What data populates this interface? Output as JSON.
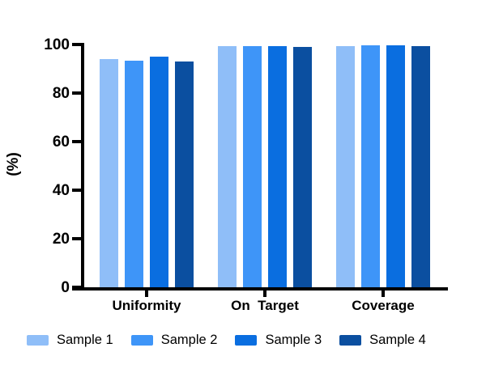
{
  "chart_data": {
    "type": "bar",
    "title": "",
    "xlabel": "",
    "ylabel": "(%)",
    "ylim": [
      0,
      100
    ],
    "yticks": [
      0,
      20,
      40,
      60,
      80,
      100
    ],
    "grid": false,
    "legend_position": "bottom",
    "categories": [
      "Uniformity",
      "On  Target",
      "Coverage"
    ],
    "series": [
      {
        "name": "Sample 1",
        "color": "#8FBEF8",
        "values": [
          94.0,
          99.3,
          99.5
        ]
      },
      {
        "name": "Sample 2",
        "color": "#3E95F8",
        "values": [
          93.5,
          99.4,
          99.7
        ]
      },
      {
        "name": "Sample 3",
        "color": "#0A6EE0",
        "values": [
          95.0,
          99.4,
          99.6
        ]
      },
      {
        "name": "Sample 4",
        "color": "#0B4FA0",
        "values": [
          93.0,
          99.1,
          99.5
        ]
      }
    ],
    "axis_color": "#000000",
    "text_color": "#000000"
  },
  "layout_note": ""
}
